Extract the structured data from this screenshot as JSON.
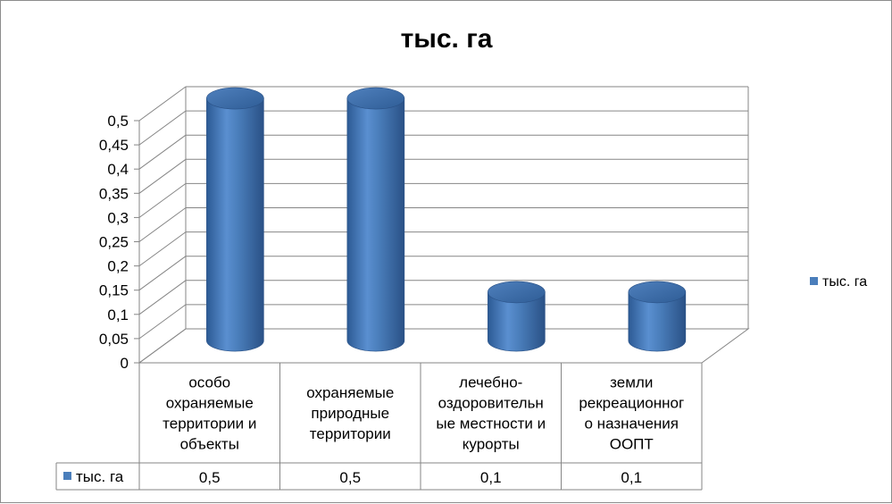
{
  "chart_data": {
    "type": "bar",
    "title": "тыс. га",
    "categories": [
      [
        "особо",
        "охраняемые",
        "территории и",
        "объекты"
      ],
      [
        "охраняемые",
        "природные",
        "территории"
      ],
      [
        "лечебно-",
        "оздоровительн",
        "ые местности и",
        "курорты"
      ],
      [
        "земли",
        "рекреационног",
        "о назначения",
        "ООПТ"
      ]
    ],
    "series": [
      {
        "name": "тыс. га",
        "values": [
          0.5,
          0.5,
          0.1,
          0.1
        ],
        "value_labels": [
          "0,5",
          "0,5",
          "0,1",
          "0,1"
        ]
      }
    ],
    "yticks": [
      "0",
      "0,05",
      "0,1",
      "0,15",
      "0,2",
      "0,25",
      "0,3",
      "0,35",
      "0,4",
      "0,45",
      "0,5"
    ],
    "ylim": [
      0,
      0.5
    ],
    "style": "3d-cylinder",
    "grid": true,
    "legend": "right",
    "data_table": true,
    "color": "#4a7ebb"
  }
}
